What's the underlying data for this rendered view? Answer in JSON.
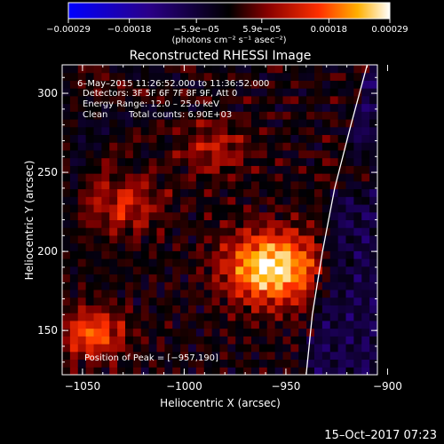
{
  "chart_data": {
    "type": "heatmap",
    "title": "Reconstructed RHESSI Image",
    "xlabel": "Heliocentric X (arcsec)",
    "ylabel": "Heliocentric Y (arcsec)",
    "xlim": [
      -1060,
      -905
    ],
    "ylim": [
      122,
      318
    ],
    "x_ticks": [
      -1050,
      -1000,
      -950,
      -900
    ],
    "x_tick_labels": [
      "−1050",
      "−1000",
      "−950",
      "−900"
    ],
    "y_ticks": [
      150,
      200,
      250,
      300
    ],
    "y_tick_labels": [
      "150",
      "200",
      "250",
      "300"
    ],
    "colorbar": {
      "ticks": [
        -0.00029,
        -0.00018,
        -5.9e-05,
        5.9e-05,
        0.00018,
        0.00029
      ],
      "tick_labels": [
        "−0.00029",
        "−0.00018",
        "−5.9e−05",
        "5.9e−05",
        "0.00018",
        "0.00029"
      ],
      "range": [
        -0.00029,
        0.00029
      ],
      "unit_text": "(photons cm⁻² s⁻¹ asec⁻²)",
      "colormap": "blue-black-red-yellow-white"
    },
    "annotations": {
      "time_range": "6–May–2015 11:26:52.000 to 11:36:52.000",
      "detectors": "Detectors: 3F 5F 6F 7F 8F 9F, Att 0",
      "energy_range": "Energy Range: 12.0 – 25.0 keV",
      "clean": "Clean",
      "total_counts": "Total counts: 6.90E+03",
      "peak": "Position of Peak = [−957,190]"
    },
    "peak": {
      "x": -957,
      "y": 190
    },
    "limb_curve": {
      "x": [
        -940,
        -937,
        -932,
        -926,
        -918,
        -910
      ],
      "y": [
        122,
        160,
        200,
        240,
        280,
        318
      ]
    },
    "sources": [
      {
        "x": -957,
        "y": 190,
        "amplitude": 0.00029,
        "sigma": 16
      },
      {
        "x": -1045,
        "y": 148,
        "amplitude": 0.00018,
        "sigma": 11
      },
      {
        "x": -1030,
        "y": 230,
        "amplitude": 0.00012,
        "sigma": 13
      },
      {
        "x": -985,
        "y": 265,
        "amplitude": 0.0001,
        "sigma": 12
      },
      {
        "x": -915,
        "y": 250,
        "amplitude": 8e-05,
        "sigma": 10
      }
    ],
    "grid": false,
    "legend": "none"
  },
  "footer": {
    "timestamp": "15–Oct–2017 07:23"
  }
}
